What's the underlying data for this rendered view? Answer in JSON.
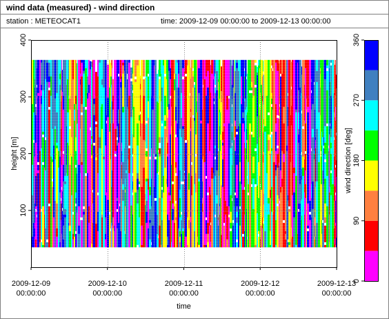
{
  "header": {
    "title": "wind data (measured) - wind direction",
    "station": "station : METEOCAT1",
    "time_range": "time: 2009-12-09 00:00:00 to 2009-12-13 00:00:00"
  },
  "chart_data": {
    "type": "heatmap",
    "title": "wind data (measured) - wind direction",
    "xlabel": "time",
    "ylabel": "height [m]",
    "x_range": [
      "2009-12-09 00:00:00",
      "2009-12-13 00:00:00"
    ],
    "x_ticks": [
      {
        "date": "2009-12-09",
        "time": "00:00:00"
      },
      {
        "date": "2009-12-10",
        "time": "00:00:00"
      },
      {
        "date": "2009-12-11",
        "time": "00:00:00"
      },
      {
        "date": "2009-12-12",
        "time": "00:00:00"
      },
      {
        "date": "2009-12-13",
        "time": "00:00:00"
      }
    ],
    "ylim": [
      0,
      400
    ],
    "y_ticks": [
      "100",
      "200",
      "300",
      "400"
    ],
    "y_tick_values": [
      100,
      200,
      300,
      400
    ],
    "data_height_range": [
      35,
      365
    ],
    "grid": true,
    "colorbar": {
      "label": "wind direction [deg]",
      "range": [
        0,
        360
      ],
      "ticks": [
        "0",
        "90",
        "180",
        "270",
        "360"
      ],
      "tick_values": [
        0,
        90,
        180,
        270,
        360
      ],
      "bins": [
        {
          "from": 0,
          "to": 45,
          "color": "#ff00ff"
        },
        {
          "from": 45,
          "to": 90,
          "color": "#ff0000"
        },
        {
          "from": 90,
          "to": 135,
          "color": "#ff8040"
        },
        {
          "from": 135,
          "to": 180,
          "color": "#ffff00"
        },
        {
          "from": 180,
          "to": 225,
          "color": "#00ff00"
        },
        {
          "from": 225,
          "to": 270,
          "color": "#00ffff"
        },
        {
          "from": 270,
          "to": 315,
          "color": "#4080c0"
        },
        {
          "from": 315,
          "to": 360,
          "color": "#0000ff"
        }
      ]
    }
  }
}
